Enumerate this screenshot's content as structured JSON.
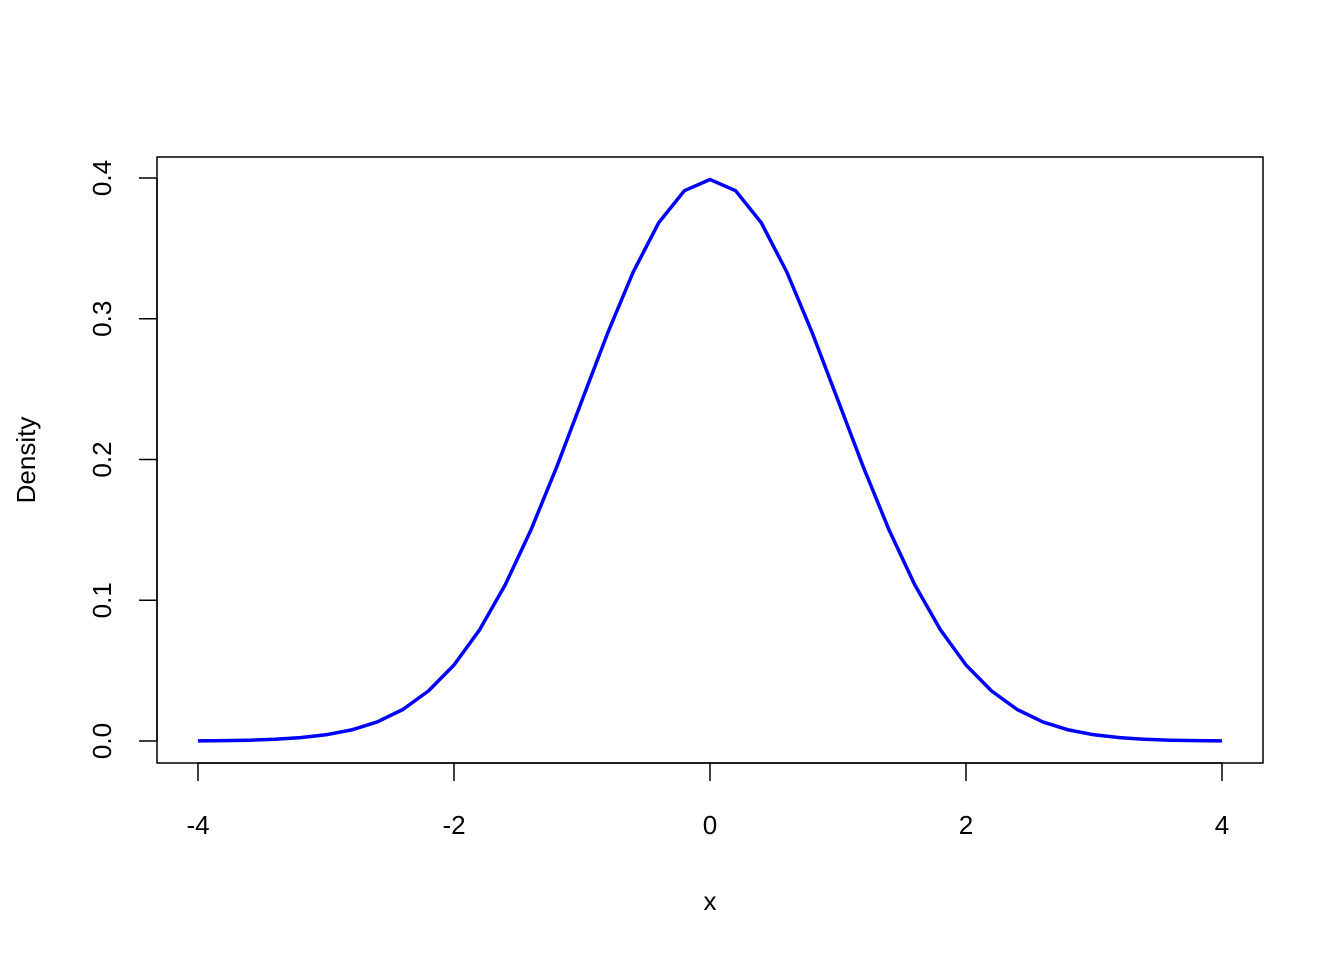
{
  "chart_data": {
    "type": "line",
    "title": "",
    "xlabel": "x",
    "ylabel": "Density",
    "xlim": [
      -4,
      4
    ],
    "ylim": [
      0,
      0.4
    ],
    "grid": false,
    "x_ticks": [
      -4,
      -2,
      0,
      2,
      4
    ],
    "x_tick_labels": [
      "-4",
      "-2",
      "0",
      "2",
      "4"
    ],
    "y_ticks": [
      0,
      0.1,
      0.2,
      0.3,
      0.4
    ],
    "y_tick_labels": [
      "0.0",
      "0.1",
      "0.2",
      "0.3",
      "0.4"
    ],
    "line_color": "#0000FF",
    "series": [
      {
        "x": [
          -4,
          -3.8,
          -3.6,
          -3.4,
          -3.2,
          -3,
          -2.8,
          -2.6,
          -2.4,
          -2.2,
          -2,
          -1.8,
          -1.6,
          -1.4,
          -1.2,
          -1,
          -0.8,
          -0.6,
          -0.4,
          -0.2,
          0,
          0.2,
          0.4,
          0.6,
          0.8,
          1,
          1.2,
          1.4,
          1.6,
          1.8,
          2,
          2.2,
          2.4,
          2.6,
          2.8,
          3,
          3.2,
          3.4,
          3.6,
          3.8,
          4
        ],
        "y": [
          0.0001,
          0.0003,
          0.0006,
          0.0012,
          0.0024,
          0.0044,
          0.0079,
          0.0136,
          0.0224,
          0.0355,
          0.054,
          0.079,
          0.1109,
          0.1497,
          0.1942,
          0.242,
          0.2897,
          0.3332,
          0.3683,
          0.391,
          0.3989,
          0.391,
          0.3683,
          0.3332,
          0.2897,
          0.242,
          0.1942,
          0.1497,
          0.1109,
          0.079,
          0.054,
          0.0355,
          0.0224,
          0.0136,
          0.0079,
          0.0044,
          0.0024,
          0.0012,
          0.0006,
          0.0003,
          0.0001
        ]
      }
    ]
  }
}
